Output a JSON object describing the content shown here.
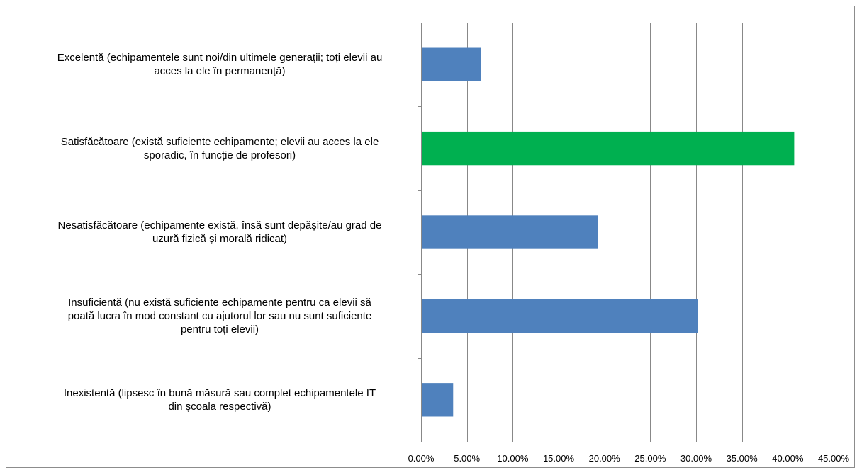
{
  "chart_data": {
    "type": "bar",
    "orientation": "horizontal",
    "categories": [
      "Excelentă (echipamentele  sunt noi/din ultimele generații; toți elevii au acces la ele în permanență)",
      "Satisfăcătoare (există suficiente echipamente; elevii au acces la ele sporadic, în funcție de profesori)",
      "Nesatisfăcătoare (echipamente există, însă sunt depășite/au grad de uzură fizică și morală ridicat)",
      "Insuficientă (nu există suficiente echipamente pentru ca elevii să poată lucra în mod constant cu ajutorul lor sau nu sunt suficiente pentru toți elevii)",
      "Inexistentă (lipsesc în bună măsură sau complet echipamentele IT din școala respectivă)"
    ],
    "category_lines": [
      [
        "Excelentă (echipamentele  sunt noi/din ultimele generații; toți elevii au",
        "acces la ele în permanență)"
      ],
      [
        "Satisfăcătoare (există suficiente echipamente; elevii au acces la ele",
        "sporadic, în funcție de profesori)"
      ],
      [
        "Nesatisfăcătoare (echipamente există, însă sunt depășite/au grad de",
        "uzură fizică și morală ridicat)"
      ],
      [
        "Insuficientă (nu există suficiente echipamente pentru ca elevii să",
        "poată lucra în mod constant cu ajutorul lor sau nu sunt suficiente",
        "pentru toți elevii)"
      ],
      [
        "Inexistentă (lipsesc în bună măsură sau complet echipamentele IT",
        "din școala respectivă)"
      ]
    ],
    "values": [
      6.5,
      40.7,
      19.3,
      30.2,
      3.5
    ],
    "bar_colors": [
      "#4f81bd",
      "#00b050",
      "#4f81bd",
      "#4f81bd",
      "#4f81bd"
    ],
    "x_ticks": [
      "0.00%",
      "5.00%",
      "10.00%",
      "15.00%",
      "20.00%",
      "25.00%",
      "30.00%",
      "35.00%",
      "40.00%",
      "45.00%"
    ],
    "xlim": [
      0,
      45
    ],
    "gridlines": true,
    "gridline_color": "#888888",
    "title": "",
    "xlabel": "",
    "ylabel": ""
  }
}
